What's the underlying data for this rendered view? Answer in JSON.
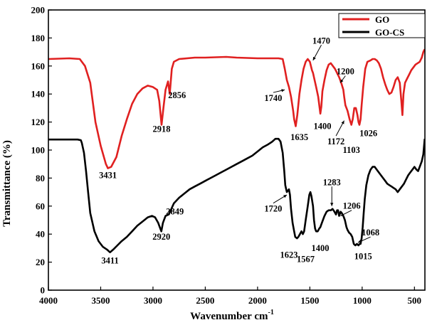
{
  "chart_data": {
    "type": "line",
    "xlabel": "Wavenumber cm",
    "xlabel_sup": "-1",
    "ylabel": "Transmittance (%)",
    "xlim": [
      4000,
      400
    ],
    "ylim": [
      0,
      200
    ],
    "x_reversed": true,
    "x_ticks": [
      4000,
      3500,
      3000,
      2500,
      2000,
      1500,
      1000,
      500
    ],
    "y_ticks": [
      0,
      20,
      40,
      60,
      80,
      100,
      120,
      140,
      160,
      180,
      200
    ],
    "legend_position": "top-right",
    "series": [
      {
        "name": "GO",
        "color": "#e02020",
        "points": [
          [
            4000,
            165
          ],
          [
            3800,
            165.5
          ],
          [
            3700,
            165
          ],
          [
            3650,
            160
          ],
          [
            3600,
            148
          ],
          [
            3550,
            120
          ],
          [
            3500,
            103
          ],
          [
            3450,
            90
          ],
          [
            3431,
            87
          ],
          [
            3400,
            88
          ],
          [
            3350,
            95
          ],
          [
            3300,
            110
          ],
          [
            3250,
            122
          ],
          [
            3200,
            133
          ],
          [
            3150,
            140
          ],
          [
            3100,
            144
          ],
          [
            3050,
            146
          ],
          [
            3000,
            145
          ],
          [
            2960,
            143
          ],
          [
            2940,
            135
          ],
          [
            2918,
            118
          ],
          [
            2900,
            130
          ],
          [
            2880,
            143
          ],
          [
            2856,
            149
          ],
          [
            2840,
            140
          ],
          [
            2820,
            158
          ],
          [
            2800,
            163
          ],
          [
            2750,
            165
          ],
          [
            2600,
            166
          ],
          [
            2500,
            166
          ],
          [
            2300,
            166.5
          ],
          [
            2200,
            166
          ],
          [
            2000,
            165.5
          ],
          [
            1800,
            165.5
          ],
          [
            1760,
            165
          ],
          [
            1740,
            158
          ],
          [
            1720,
            150
          ],
          [
            1700,
            145
          ],
          [
            1680,
            138
          ],
          [
            1660,
            128
          ],
          [
            1650,
            122
          ],
          [
            1635,
            117
          ],
          [
            1620,
            125
          ],
          [
            1600,
            140
          ],
          [
            1580,
            150
          ],
          [
            1560,
            158
          ],
          [
            1540,
            163
          ],
          [
            1520,
            165
          ],
          [
            1500,
            163
          ],
          [
            1480,
            157
          ],
          [
            1470,
            155
          ],
          [
            1455,
            150
          ],
          [
            1440,
            145
          ],
          [
            1420,
            138
          ],
          [
            1410,
            132
          ],
          [
            1400,
            126
          ],
          [
            1390,
            131
          ],
          [
            1380,
            142
          ],
          [
            1360,
            150
          ],
          [
            1340,
            157
          ],
          [
            1320,
            161
          ],
          [
            1300,
            162
          ],
          [
            1280,
            160
          ],
          [
            1260,
            158
          ],
          [
            1240,
            155
          ],
          [
            1220,
            152
          ],
          [
            1200,
            148
          ],
          [
            1180,
            143
          ],
          [
            1172,
            138
          ],
          [
            1160,
            132
          ],
          [
            1140,
            128
          ],
          [
            1120,
            122
          ],
          [
            1103,
            118
          ],
          [
            1090,
            122
          ],
          [
            1075,
            130
          ],
          [
            1060,
            130
          ],
          [
            1045,
            125
          ],
          [
            1035,
            120
          ],
          [
            1026,
            118
          ],
          [
            1015,
            122
          ],
          [
            1005,
            132
          ],
          [
            990,
            145
          ],
          [
            970,
            158
          ],
          [
            950,
            163
          ],
          [
            920,
            164
          ],
          [
            900,
            165
          ],
          [
            880,
            165
          ],
          [
            860,
            164
          ],
          [
            840,
            162
          ],
          [
            820,
            158
          ],
          [
            800,
            152
          ],
          [
            780,
            147
          ],
          [
            760,
            143
          ],
          [
            740,
            140
          ],
          [
            720,
            141
          ],
          [
            700,
            145
          ],
          [
            680,
            150
          ],
          [
            660,
            152
          ],
          [
            640,
            148
          ],
          [
            625,
            135
          ],
          [
            615,
            125
          ],
          [
            605,
            140
          ],
          [
            590,
            148
          ],
          [
            570,
            151
          ],
          [
            550,
            154
          ],
          [
            530,
            157
          ],
          [
            510,
            159
          ],
          [
            490,
            161
          ],
          [
            470,
            162
          ],
          [
            450,
            163
          ],
          [
            430,
            166
          ],
          [
            415,
            170
          ],
          [
            402,
            172
          ]
        ]
      },
      {
        "name": "GO-CS",
        "color": "#000000",
        "points": [
          [
            4000,
            107.5
          ],
          [
            3900,
            107.5
          ],
          [
            3800,
            107.5
          ],
          [
            3720,
            107.5
          ],
          [
            3690,
            107
          ],
          [
            3680,
            105
          ],
          [
            3660,
            98
          ],
          [
            3640,
            85
          ],
          [
            3620,
            70
          ],
          [
            3600,
            55
          ],
          [
            3560,
            42
          ],
          [
            3520,
            35
          ],
          [
            3480,
            31
          ],
          [
            3440,
            29
          ],
          [
            3411,
            27
          ],
          [
            3380,
            29
          ],
          [
            3340,
            32
          ],
          [
            3300,
            35
          ],
          [
            3250,
            38
          ],
          [
            3200,
            42
          ],
          [
            3150,
            46
          ],
          [
            3100,
            49
          ],
          [
            3050,
            52
          ],
          [
            3010,
            53
          ],
          [
            2980,
            52
          ],
          [
            2950,
            48
          ],
          [
            2935,
            45
          ],
          [
            2920,
            42
          ],
          [
            2905,
            48
          ],
          [
            2880,
            53
          ],
          [
            2849,
            54
          ],
          [
            2830,
            57
          ],
          [
            2800,
            62
          ],
          [
            2750,
            66
          ],
          [
            2700,
            69
          ],
          [
            2650,
            72
          ],
          [
            2600,
            74
          ],
          [
            2550,
            76
          ],
          [
            2500,
            78
          ],
          [
            2450,
            80
          ],
          [
            2400,
            82
          ],
          [
            2350,
            84
          ],
          [
            2300,
            86
          ],
          [
            2250,
            88
          ],
          [
            2200,
            90
          ],
          [
            2150,
            92
          ],
          [
            2100,
            94
          ],
          [
            2050,
            96
          ],
          [
            2000,
            99
          ],
          [
            1950,
            102
          ],
          [
            1900,
            104
          ],
          [
            1860,
            106
          ],
          [
            1830,
            108
          ],
          [
            1800,
            108
          ],
          [
            1780,
            106
          ],
          [
            1760,
            98
          ],
          [
            1745,
            85
          ],
          [
            1735,
            75
          ],
          [
            1720,
            70
          ],
          [
            1700,
            72
          ],
          [
            1690,
            68
          ],
          [
            1680,
            58
          ],
          [
            1665,
            48
          ],
          [
            1650,
            42
          ],
          [
            1640,
            38
          ],
          [
            1623,
            37
          ],
          [
            1610,
            38
          ],
          [
            1595,
            40
          ],
          [
            1580,
            42
          ],
          [
            1567,
            40
          ],
          [
            1555,
            42
          ],
          [
            1540,
            50
          ],
          [
            1520,
            60
          ],
          [
            1505,
            68
          ],
          [
            1495,
            70
          ],
          [
            1485,
            67
          ],
          [
            1470,
            60
          ],
          [
            1460,
            50
          ],
          [
            1450,
            44
          ],
          [
            1440,
            42
          ],
          [
            1425,
            42
          ],
          [
            1410,
            44
          ],
          [
            1400,
            45
          ],
          [
            1390,
            47
          ],
          [
            1375,
            50
          ],
          [
            1360,
            53
          ],
          [
            1340,
            56
          ],
          [
            1320,
            57
          ],
          [
            1300,
            57
          ],
          [
            1283,
            58
          ],
          [
            1265,
            56
          ],
          [
            1250,
            54
          ],
          [
            1240,
            57
          ],
          [
            1230,
            57
          ],
          [
            1220,
            53
          ],
          [
            1210,
            55
          ],
          [
            1206,
            56
          ],
          [
            1195,
            55
          ],
          [
            1180,
            53
          ],
          [
            1165,
            50
          ],
          [
            1150,
            45
          ],
          [
            1140,
            43
          ],
          [
            1125,
            41
          ],
          [
            1110,
            40
          ],
          [
            1095,
            38
          ],
          [
            1080,
            33
          ],
          [
            1065,
            32
          ],
          [
            1050,
            33
          ],
          [
            1035,
            32
          ],
          [
            1025,
            33
          ],
          [
            1015,
            33
          ],
          [
            1005,
            37
          ],
          [
            995,
            45
          ],
          [
            985,
            55
          ],
          [
            975,
            65
          ],
          [
            960,
            75
          ],
          [
            940,
            82
          ],
          [
            920,
            86
          ],
          [
            900,
            88
          ],
          [
            880,
            88
          ],
          [
            860,
            86
          ],
          [
            840,
            84
          ],
          [
            820,
            82
          ],
          [
            800,
            80
          ],
          [
            780,
            78
          ],
          [
            760,
            76
          ],
          [
            740,
            75
          ],
          [
            720,
            74
          ],
          [
            700,
            73
          ],
          [
            680,
            72
          ],
          [
            660,
            70
          ],
          [
            640,
            72
          ],
          [
            620,
            74
          ],
          [
            600,
            76
          ],
          [
            580,
            79
          ],
          [
            560,
            82
          ],
          [
            540,
            84
          ],
          [
            520,
            86
          ],
          [
            500,
            88
          ],
          [
            480,
            86
          ],
          [
            465,
            85
          ],
          [
            450,
            88
          ],
          [
            430,
            92
          ],
          [
            415,
            97
          ],
          [
            402,
            108
          ]
        ]
      }
    ],
    "annotations": [
      {
        "text": "3431",
        "x": 3431,
        "y": 80,
        "arrow": false
      },
      {
        "text": "2918",
        "x": 2918,
        "y": 113,
        "arrow": false
      },
      {
        "text": "2856",
        "x": 2770,
        "y": 137,
        "arrow": false
      },
      {
        "text": "1740",
        "x": 1850,
        "y": 135,
        "arrow": true,
        "tx": 1740,
        "ty": 143
      },
      {
        "text": "1635",
        "x": 1600,
        "y": 107,
        "arrow": false
      },
      {
        "text": "1470",
        "x": 1390,
        "y": 176,
        "arrow": true,
        "tx": 1470,
        "ty": 164
      },
      {
        "text": "1400",
        "x": 1380,
        "y": 115,
        "arrow": false
      },
      {
        "text": "1200",
        "x": 1160,
        "y": 154,
        "arrow": true,
        "tx": 1210,
        "ty": 148
      },
      {
        "text": "1172",
        "x": 1250,
        "y": 104,
        "arrow": true,
        "tx": 1172,
        "ty": 121
      },
      {
        "text": "1103",
        "x": 1103,
        "y": 98,
        "arrow": false
      },
      {
        "text": "1026",
        "x": 940,
        "y": 110,
        "arrow": false
      },
      {
        "text": "3411",
        "x": 3411,
        "y": 19,
        "arrow": false
      },
      {
        "text": "2920",
        "x": 2920,
        "y": 36,
        "arrow": false
      },
      {
        "text": "2849",
        "x": 2790,
        "y": 54,
        "arrow": false
      },
      {
        "text": "1720",
        "x": 1850,
        "y": 56,
        "arrow": true,
        "tx": 1720,
        "ty": 68
      },
      {
        "text": "1623",
        "x": 1700,
        "y": 23,
        "arrow": false
      },
      {
        "text": "1567",
        "x": 1540,
        "y": 20,
        "arrow": false
      },
      {
        "text": "1400",
        "x": 1400,
        "y": 28,
        "arrow": false
      },
      {
        "text": "1283",
        "x": 1290,
        "y": 75,
        "arrow": true,
        "tx": 1290,
        "ty": 60
      },
      {
        "text": "1206",
        "x": 1100,
        "y": 58,
        "arrow": true,
        "tx": 1206,
        "ty": 53
      },
      {
        "text": "1068",
        "x": 920,
        "y": 39,
        "arrow": true,
        "tx": 1040,
        "ty": 34
      },
      {
        "text": "1015",
        "x": 990,
        "y": 22,
        "arrow": false
      }
    ]
  }
}
